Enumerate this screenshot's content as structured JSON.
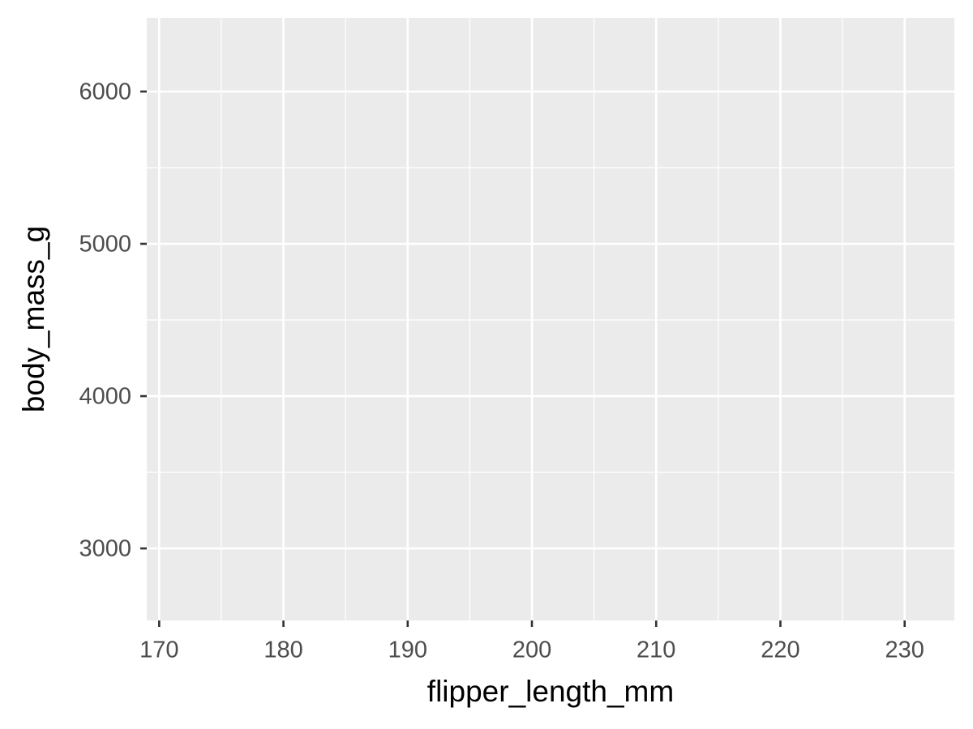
{
  "chart_data": {
    "type": "scatter",
    "x_label": "flipper_length_mm",
    "y_label": "body_mass_g",
    "x": [],
    "y": [],
    "xlim": [
      169,
      234
    ],
    "xticks": [
      170,
      180,
      190,
      200,
      210,
      220,
      230
    ],
    "ylim": [
      2527,
      6484
    ],
    "yticks": [
      3000,
      4000,
      5000,
      6000
    ],
    "grid": true,
    "panel_color": "#ebebeb",
    "grid_color": "#ffffff",
    "axis_text_color": "#4d4d4d"
  }
}
